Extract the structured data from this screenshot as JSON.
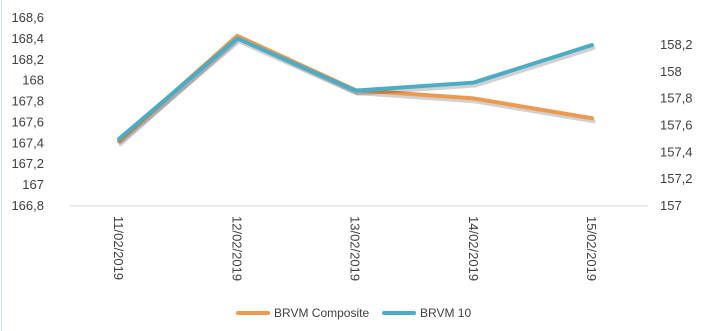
{
  "chart_data": {
    "type": "line",
    "categories": [
      "11/02/2019",
      "12/02/2019",
      "13/02/2019",
      "14/02/2019",
      "15/02/2019"
    ],
    "series": [
      {
        "name": "BRVM Composite",
        "axis": "left",
        "values": [
          167.42,
          168.43,
          167.91,
          167.83,
          167.64
        ],
        "color": "#ed9a4f"
      },
      {
        "name": "BRVM 10",
        "axis": "right",
        "values": [
          157.5,
          158.25,
          157.86,
          157.92,
          158.2
        ],
        "color": "#4bacc6"
      }
    ],
    "y_left": {
      "min": 166.8,
      "max": 168.6,
      "ticks": [
        "168,6",
        "168,4",
        "168,2",
        "168",
        "167,8",
        "167,6",
        "167,4",
        "167,2",
        "167",
        "166,8"
      ]
    },
    "y_right": {
      "min": 157.0,
      "max": 158.4,
      "ticks": [
        "158,2",
        "158",
        "157,8",
        "157,6",
        "157,4",
        "157,2",
        "157"
      ]
    },
    "grid": false,
    "legend": "bottom",
    "title": "",
    "xlabel": "",
    "ylabel": ""
  }
}
